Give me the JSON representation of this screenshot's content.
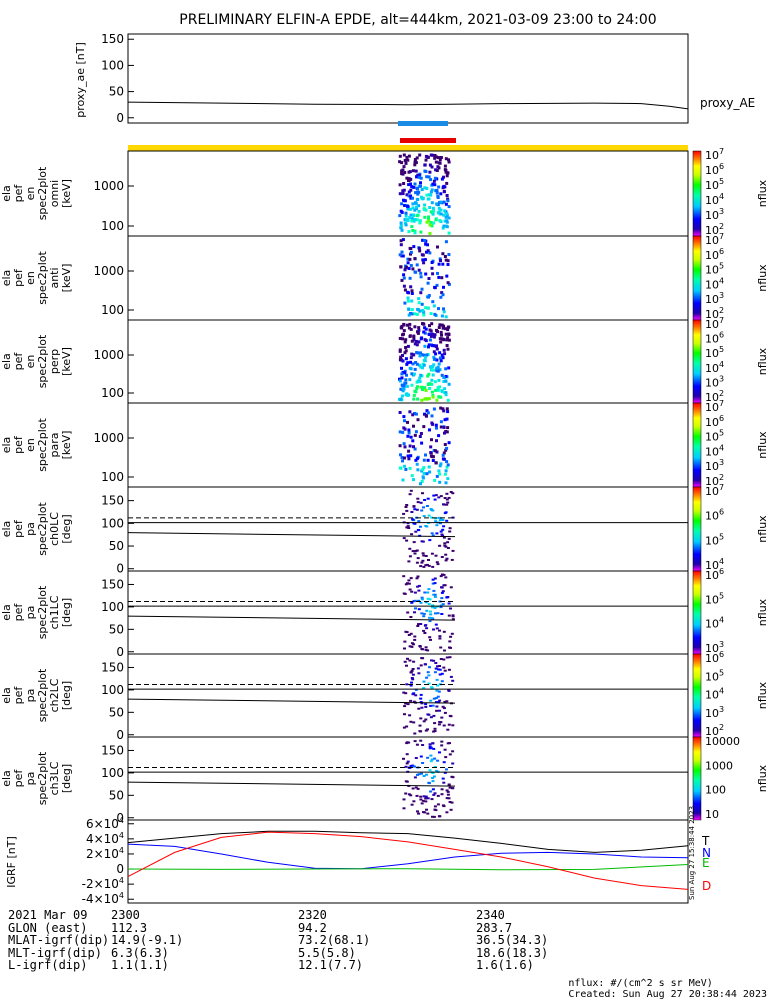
{
  "title": "PRELIMINARY ELFIN-A EPDE, alt=444km, 2021-03-09 23:00 to 24:00",
  "chart_data": [
    {
      "type": "line",
      "panel": "proxy_ae",
      "ylabel": "proxy_ae [nT]",
      "ylim": [
        -10,
        160
      ],
      "yticks": [
        0,
        50,
        100,
        150
      ],
      "series": [
        {
          "name": "proxy_AE",
          "x": [
            2300,
            2310,
            2320,
            2330,
            2340,
            2350,
            2355,
            2358,
            2360
          ],
          "values": [
            30,
            28,
            26,
            25,
            27,
            28,
            27,
            22,
            17
          ]
        }
      ]
    },
    {
      "type": "heatmap",
      "panel": "ela_pef_en_spec2plot_omni",
      "ylabel": [
        "ela",
        "pef",
        "en",
        "spec2plot",
        "omni",
        "[keV]"
      ],
      "yticks": [
        100,
        1000
      ],
      "colorbar_label": "nflux",
      "colorbar_ticks": [
        "10^2",
        "10^3",
        "10^4",
        "10^5",
        "10^6",
        "10^7"
      ]
    },
    {
      "type": "heatmap",
      "panel": "ela_pef_en_spec2plot_anti",
      "ylabel": [
        "ela",
        "pef",
        "en",
        "spec2plot",
        "anti",
        "[keV]"
      ],
      "yticks": [
        100,
        1000
      ],
      "colorbar_label": "nflux",
      "colorbar_ticks": [
        "10^2",
        "10^3",
        "10^4",
        "10^5",
        "10^6",
        "10^7"
      ]
    },
    {
      "type": "heatmap",
      "panel": "ela_pef_en_spec2plot_perp",
      "ylabel": [
        "ela",
        "pef",
        "en",
        "spec2plot",
        "perp",
        "[keV]"
      ],
      "yticks": [
        100,
        1000
      ],
      "colorbar_label": "nflux",
      "colorbar_ticks": [
        "10^2",
        "10^3",
        "10^4",
        "10^5",
        "10^6",
        "10^7"
      ]
    },
    {
      "type": "heatmap",
      "panel": "ela_pef_en_spec2plot_para",
      "ylabel": [
        "ela",
        "pef",
        "en",
        "spec2plot",
        "para",
        "[keV]"
      ],
      "yticks": [
        100,
        1000
      ],
      "colorbar_label": "nflux",
      "colorbar_ticks": [
        "10^2",
        "10^3",
        "10^4",
        "10^5",
        "10^6",
        "10^7"
      ]
    },
    {
      "type": "heatmap",
      "panel": "ela_pef_pa_spec2plot_ch0LC",
      "ylabel": [
        "ela",
        "pef",
        "pa",
        "spec2plot",
        "ch0LC",
        "[deg]"
      ],
      "yticks": [
        0,
        50,
        100,
        150
      ],
      "colorbar_label": "nflux",
      "colorbar_ticks": [
        "10^4",
        "10^5",
        "10^6",
        "10^7"
      ]
    },
    {
      "type": "heatmap",
      "panel": "ela_pef_pa_spec2plot_ch1LC",
      "ylabel": [
        "ela",
        "pef",
        "pa",
        "spec2plot",
        "ch1LC",
        "[deg]"
      ],
      "yticks": [
        0,
        50,
        100,
        150
      ],
      "colorbar_label": "nflux",
      "colorbar_ticks": [
        "10^3",
        "10^4",
        "10^5",
        "10^6"
      ]
    },
    {
      "type": "heatmap",
      "panel": "ela_pef_pa_spec2plot_ch2LC",
      "ylabel": [
        "ela",
        "pef",
        "pa",
        "spec2plot",
        "ch2LC",
        "[deg]"
      ],
      "yticks": [
        0,
        50,
        100,
        150
      ],
      "colorbar_label": "nflux",
      "colorbar_ticks": [
        "10^2",
        "10^3",
        "10^4",
        "10^5",
        "10^6"
      ]
    },
    {
      "type": "heatmap",
      "panel": "ela_pef_pa_spec2plot_ch3LC",
      "ylabel": [
        "ela",
        "pef",
        "pa",
        "spec2plot",
        "ch3LC",
        "[deg]"
      ],
      "yticks": [
        0,
        50,
        100,
        150
      ],
      "colorbar_label": "nflux",
      "colorbar_ticks": [
        "10",
        "100",
        "1000",
        "10000"
      ]
    },
    {
      "type": "line",
      "panel": "IGRF",
      "ylabel": "IGRF [nT]",
      "ylim": [
        -45000,
        65000
      ],
      "yticks": [
        "-4×10^4",
        "-2×10^4",
        "0",
        "2×10^4",
        "4×10^4",
        "6×10^4"
      ],
      "series": [
        {
          "name": "T",
          "color": "#000000",
          "x": [
            2300,
            2305,
            2310,
            2315,
            2320,
            2325,
            2330,
            2335,
            2340,
            2345,
            2350,
            2355,
            2360
          ],
          "values": [
            35000,
            41000,
            47000,
            50000,
            50000,
            48000,
            47000,
            41000,
            34000,
            26000,
            22000,
            25000,
            31000
          ]
        },
        {
          "name": "N",
          "color": "#0000ff",
          "x": [
            2300,
            2305,
            2310,
            2315,
            2320,
            2325,
            2330,
            2335,
            2340,
            2345,
            2350,
            2355,
            2360
          ],
          "values": [
            33000,
            30000,
            20000,
            9000,
            1000,
            500,
            7000,
            16000,
            21000,
            22000,
            20000,
            16000,
            15000
          ]
        },
        {
          "name": "E",
          "color": "#00bb00",
          "x": [
            2300,
            2310,
            2320,
            2330,
            2340,
            2350,
            2360
          ],
          "values": [
            0,
            -500,
            0,
            500,
            -1000,
            -500,
            6000
          ]
        },
        {
          "name": "D",
          "color": "#ff0000",
          "x": [
            2300,
            2305,
            2310,
            2315,
            2320,
            2325,
            2330,
            2335,
            2340,
            2345,
            2350,
            2355,
            2360
          ],
          "values": [
            -10000,
            22000,
            42000,
            49000,
            47000,
            43000,
            36000,
            26000,
            16000,
            3000,
            -12000,
            -22000,
            -27000
          ]
        }
      ]
    }
  ],
  "legend": {
    "proxy_ae": "proxy_AE",
    "igrf": [
      "T",
      "N",
      "E",
      "D"
    ],
    "colors": {
      "T": "#000000",
      "N": "#0000ff",
      "E": "#00bb00",
      "D": "#ff0000"
    }
  },
  "footer": {
    "rows": [
      {
        "label": "2021 Mar 09",
        "values": [
          "2300",
          "2320",
          "2340"
        ]
      },
      {
        "label": "GLON (east)",
        "values": [
          "112.3",
          "94.2",
          "283.7"
        ]
      },
      {
        "label": "MLAT-igrf(dip)",
        "values": [
          "14.9(-9.1)",
          "73.2(68.1)",
          "36.5(34.3)"
        ]
      },
      {
        "label": "MLT-igrf(dip)",
        "values": [
          "6.3(6.3)",
          "5.5(5.8)",
          "18.6(18.3)"
        ]
      },
      {
        "label": "L-igrf(dip)",
        "values": [
          "1.1(1.1)",
          "12.1(7.7)",
          "1.6(1.6)"
        ]
      }
    ],
    "nflux_units": "nflux: #/(cm^2 s sr MeV)",
    "created": "Created: Sun Aug 27 20:38:44 2023",
    "side_stamp": "Sun Aug 27 15:38:44 2023"
  }
}
